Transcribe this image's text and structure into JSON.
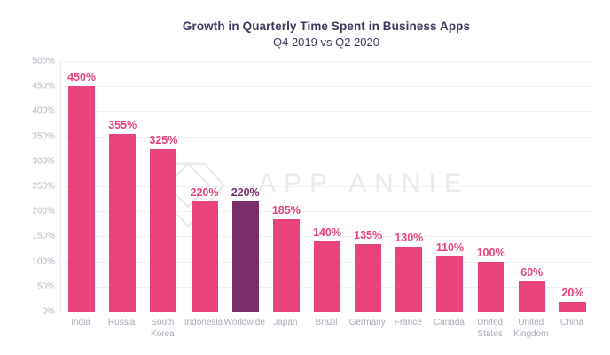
{
  "title": "Growth in Quarterly Time Spent in Business Apps",
  "subtitle": "Q4 2019 vs Q2 2020",
  "watermark": {
    "text": "APP ANNIE",
    "logo": "gem-icon"
  },
  "colors": {
    "bar": "#E8437A",
    "highlight": "#7A2D6B",
    "title": "#3C3A5C",
    "y_tick_label": "#B2B8C4",
    "x_tick_label": "#A5ABB7",
    "grid": "#F1F2F5",
    "baseline": "#DDE0E6",
    "axis_line": "#E9EBEF",
    "watermark": "#E8EAEE"
  },
  "chart_data": {
    "type": "bar",
    "title": "Growth in Quarterly Time Spent in Business Apps",
    "subtitle": "Q4 2019 vs Q2 2020",
    "categories": [
      "India",
      "Russia",
      "South Korea",
      "Indonesia",
      "Worldwide",
      "Japan",
      "Brazil",
      "Germany",
      "France",
      "Canada",
      "United States",
      "United Kingdom",
      "China"
    ],
    "values": [
      450,
      355,
      325,
      220,
      220,
      185,
      140,
      135,
      130,
      110,
      100,
      60,
      20
    ],
    "value_labels": [
      "450%",
      "355%",
      "325%",
      "220%",
      "220%",
      "185%",
      "140%",
      "135%",
      "130%",
      "110%",
      "100%",
      "60%",
      "20%"
    ],
    "highlighted_category": "Worldwide",
    "xlabel": "",
    "ylabel": "",
    "ylim": [
      0,
      500
    ],
    "y_ticks": [
      "500%",
      "450%",
      "400%",
      "350%",
      "300%",
      "250%",
      "200%",
      "150%",
      "100%",
      "50%",
      "0%"
    ],
    "grid": true,
    "legend": false
  }
}
